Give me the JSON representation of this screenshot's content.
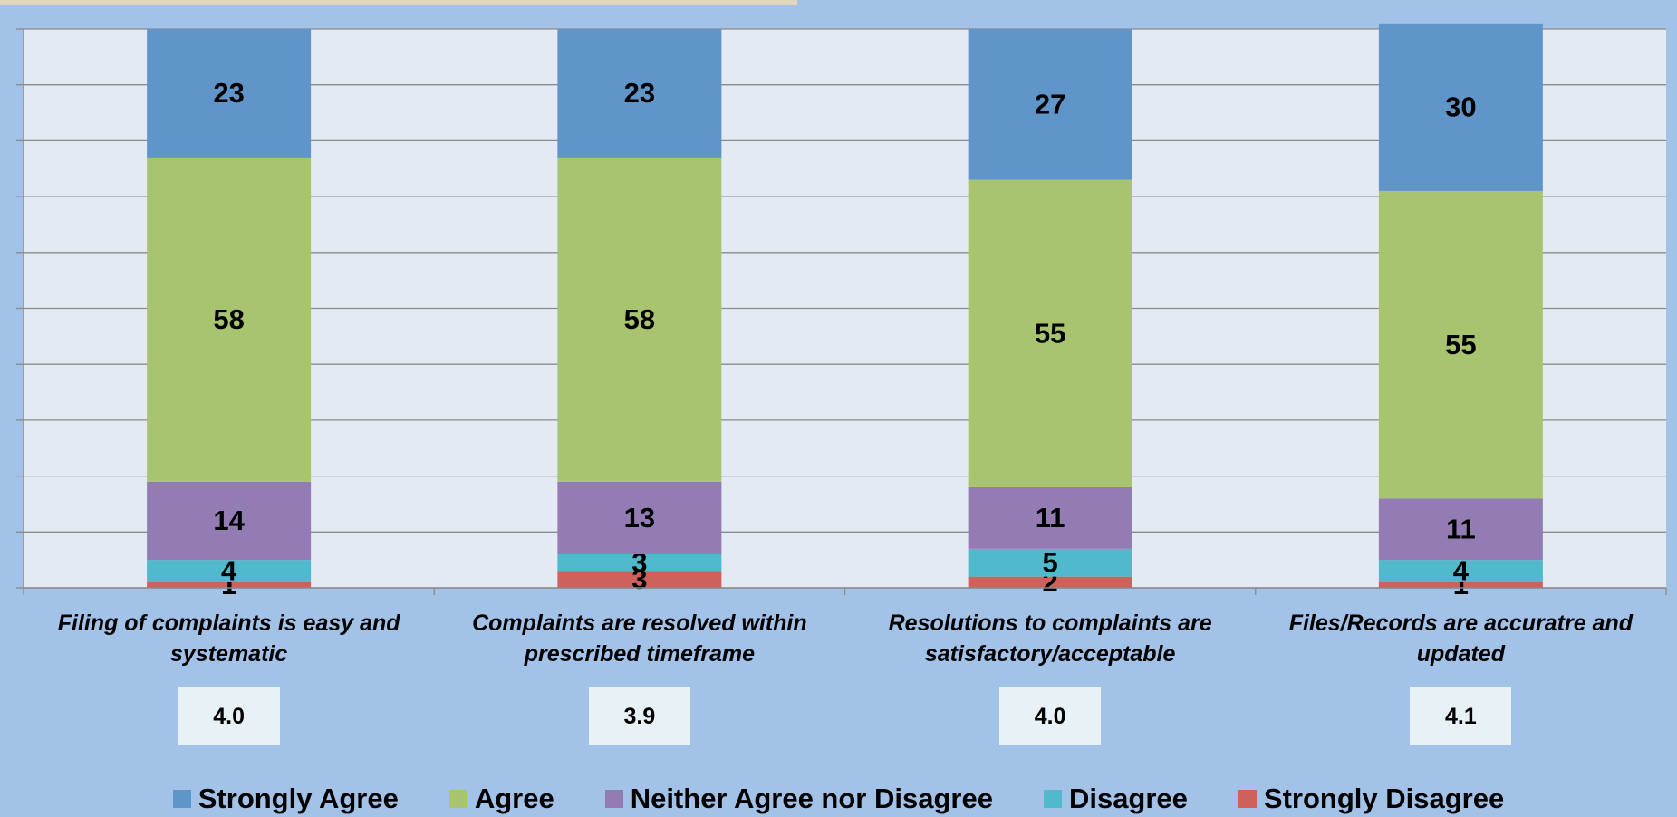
{
  "chart_data": {
    "type": "stacked_bar",
    "categories": [
      "Filing of complaints is easy and systematic",
      "Complaints are resolved within prescribed timeframe",
      "Resolutions to complaints are satisfactory/acceptable",
      "Files/Records are accuratre and updated"
    ],
    "series": [
      {
        "name": "Strongly Agree",
        "color": "#6095c9",
        "values": [
          23,
          23,
          27,
          30
        ]
      },
      {
        "name": "Agree",
        "color": "#a9c46f",
        "values": [
          58,
          58,
          55,
          55
        ]
      },
      {
        "name": "Neither Agree nor Disagree",
        "color": "#937bb4",
        "values": [
          14,
          13,
          11,
          11
        ]
      },
      {
        "name": "Disagree",
        "color": "#50b9cc",
        "values": [
          4,
          3,
          5,
          4
        ]
      },
      {
        "name": "Strongly Disagree",
        "color": "#cf615c",
        "values": [
          1,
          3,
          2,
          1
        ]
      }
    ],
    "score_labels": [
      "4.0",
      "3.9",
      "4.0",
      "4.1"
    ],
    "ylim": [
      0,
      100
    ],
    "yticks": [
      0,
      10,
      20,
      30,
      40,
      50,
      60,
      70,
      80,
      90,
      100
    ],
    "grid": true,
    "legend": "bottom"
  }
}
